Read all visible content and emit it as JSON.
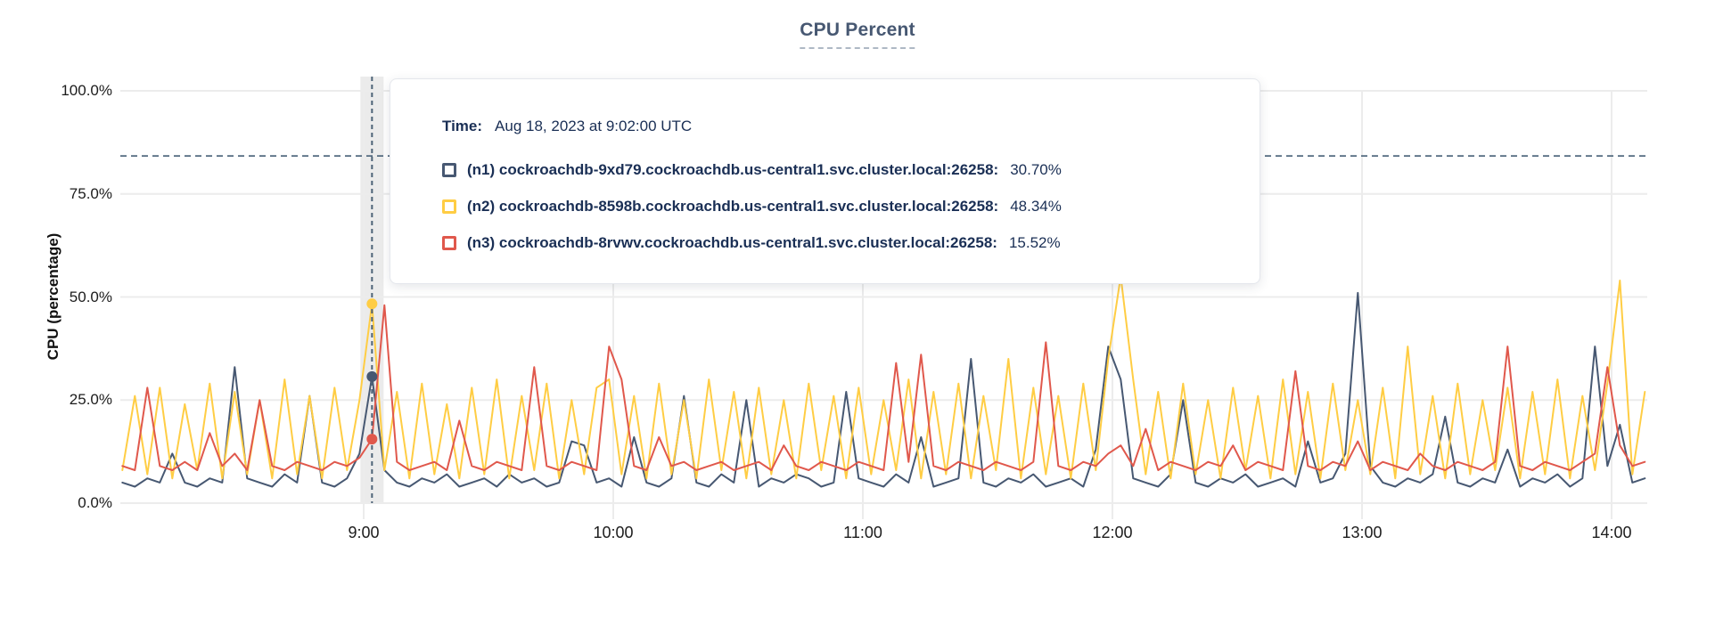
{
  "title": "CPU Percent",
  "colors": {
    "title_text": "#475872",
    "tooltip_text": "#1a2f55",
    "gridline": "#ececec",
    "threshold_dash": "#546b80",
    "hover_dash": "#4d6377",
    "hover_band": "#ebebeb",
    "series_n1": "#475872",
    "series_n2": "#ffcd44",
    "series_n3": "#e0584c"
  },
  "tooltip": {
    "time_label": "Time:",
    "time_value": "Aug 18, 2023 at 9:02:00 UTC",
    "hover_minute": 542,
    "rows": [
      {
        "name": "(n1) cockroachdb-9xd79.cockroachdb.us-central1.svc.cluster.local:26258:",
        "value": "30.70%",
        "pct": 30.7,
        "color": "#475872"
      },
      {
        "name": "(n2) cockroachdb-8598b.cockroachdb.us-central1.svc.cluster.local:26258:",
        "value": "48.34%",
        "pct": 48.34,
        "color": "#ffcd44"
      },
      {
        "name": "(n3) cockroachdb-8rvwv.cockroachdb.us-central1.svc.cluster.local:26258:",
        "value": "15.52%",
        "pct": 15.52,
        "color": "#e0584c"
      }
    ]
  },
  "chart_data": {
    "type": "line",
    "title": "CPU Percent",
    "xlabel": "",
    "ylabel": "CPU (percentage)",
    "ylim": [
      0,
      100
    ],
    "grid": true,
    "legend_position": "tooltip-overlay",
    "threshold_pct": 84.2,
    "x_domain_minutes": [
      482,
      848
    ],
    "sample_start_min": 482,
    "sample_step_min": 3,
    "y_ticks": [
      {
        "value": 100,
        "label": "100.0%"
      },
      {
        "value": 75,
        "label": "75.0%"
      },
      {
        "value": 50,
        "label": "50.0%"
      },
      {
        "value": 25,
        "label": "25.0%"
      },
      {
        "value": 0,
        "label": "0.0%"
      }
    ],
    "x_ticks": [
      {
        "minute": 540,
        "label": "9:00"
      },
      {
        "minute": 600,
        "label": "10:00"
      },
      {
        "minute": 660,
        "label": "11:00"
      },
      {
        "minute": 720,
        "label": "12:00"
      },
      {
        "minute": 780,
        "label": "13:00"
      },
      {
        "minute": 840,
        "label": "14:00"
      }
    ],
    "series": [
      {
        "id": "n1",
        "name": "(n1) cockroachdb-9xd79.cockroachdb.us-central1.svc.cluster.local:26258",
        "color": "#475872",
        "values": [
          5,
          4,
          6,
          5,
          12,
          5,
          4,
          6,
          5,
          33,
          6,
          5,
          4,
          7,
          5,
          26,
          5,
          4,
          6,
          12,
          30.7,
          8,
          5,
          4,
          6,
          5,
          7,
          4,
          5,
          6,
          4,
          7,
          5,
          6,
          4,
          5,
          15,
          14,
          5,
          6,
          4,
          16,
          5,
          4,
          6,
          26,
          5,
          4,
          7,
          5,
          25,
          4,
          6,
          5,
          7,
          6,
          4,
          5,
          27,
          6,
          5,
          4,
          7,
          5,
          16,
          4,
          5,
          6,
          35,
          5,
          4,
          6,
          5,
          7,
          4,
          5,
          6,
          4,
          13,
          38,
          30,
          6,
          5,
          4,
          7,
          25,
          5,
          4,
          6,
          5,
          7,
          4,
          5,
          6,
          4,
          15,
          5,
          6,
          12,
          51,
          9,
          5,
          4,
          6,
          5,
          7,
          21,
          5,
          4,
          6,
          5,
          13,
          4,
          6,
          5,
          7,
          4,
          6,
          38,
          9,
          19,
          5,
          6
        ]
      },
      {
        "id": "n2",
        "name": "(n2) cockroachdb-8598b.cockroachdb.us-central1.svc.cluster.local:26258",
        "color": "#ffcd44",
        "values": [
          8,
          26,
          7,
          28,
          6,
          24,
          8,
          29,
          6,
          27,
          7,
          25,
          6,
          30,
          7,
          26,
          6,
          28,
          8,
          25,
          48.34,
          8,
          27,
          6,
          29,
          7,
          24,
          6,
          28,
          7,
          30,
          6,
          26,
          8,
          29,
          6,
          25,
          7,
          28,
          30,
          7,
          26,
          6,
          29,
          7,
          25,
          6,
          30,
          8,
          27,
          6,
          28,
          7,
          25,
          6,
          29,
          8,
          26,
          6,
          28,
          7,
          25,
          8,
          30,
          6,
          27,
          7,
          29,
          6,
          26,
          8,
          35,
          6,
          28,
          7,
          26,
          6,
          29,
          8,
          35,
          55,
          30,
          7,
          27,
          6,
          29,
          7,
          25,
          6,
          28,
          8,
          26,
          6,
          30,
          7,
          27,
          6,
          29,
          8,
          25,
          7,
          28,
          6,
          38,
          7,
          26,
          6,
          29,
          7,
          25,
          8,
          28,
          6,
          27,
          7,
          30,
          6,
          26,
          8,
          29,
          54,
          7,
          27
        ]
      },
      {
        "id": "n3",
        "name": "(n3) cockroachdb-8rvwv.cockroachdb.us-central1.svc.cluster.local:26258",
        "color": "#e0584c",
        "values": [
          9,
          8,
          28,
          9,
          8,
          10,
          8,
          17,
          9,
          12,
          8,
          25,
          9,
          8,
          10,
          9,
          8,
          10,
          9,
          11,
          15.52,
          48,
          10,
          8,
          9,
          10,
          8,
          20,
          9,
          8,
          10,
          9,
          8,
          33,
          9,
          8,
          10,
          9,
          8,
          38,
          30,
          9,
          8,
          16,
          9,
          10,
          8,
          9,
          10,
          8,
          9,
          10,
          8,
          14,
          9,
          8,
          10,
          9,
          8,
          10,
          9,
          8,
          34,
          10,
          36,
          9,
          8,
          10,
          9,
          8,
          10,
          9,
          8,
          10,
          39,
          9,
          8,
          10,
          9,
          12,
          14,
          9,
          18,
          8,
          10,
          9,
          8,
          10,
          9,
          14,
          8,
          10,
          9,
          8,
          32,
          9,
          8,
          10,
          9,
          15,
          8,
          10,
          9,
          8,
          12,
          9,
          8,
          10,
          9,
          8,
          10,
          38,
          9,
          8,
          10,
          9,
          8,
          10,
          12,
          33,
          14,
          9,
          10
        ]
      }
    ]
  }
}
